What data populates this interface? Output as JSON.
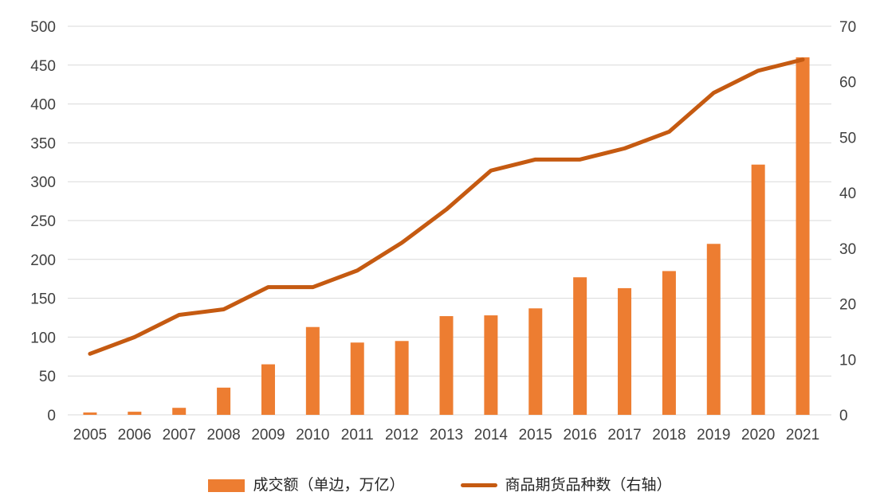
{
  "chart_data": {
    "type": "bar+line",
    "title": "",
    "categories": [
      "2005",
      "2006",
      "2007",
      "2008",
      "2009",
      "2010",
      "2011",
      "2012",
      "2013",
      "2014",
      "2015",
      "2016",
      "2017",
      "2018",
      "2019",
      "2020",
      "2021"
    ],
    "series": [
      {
        "name": "成交额（单边，万亿）",
        "type": "bar",
        "axis": "left",
        "color": "#ED7D31",
        "values": [
          3,
          4,
          9,
          35,
          65,
          113,
          93,
          95,
          127,
          128,
          137,
          177,
          163,
          185,
          220,
          322,
          460
        ]
      },
      {
        "name": "商品期货品种数（右轴）",
        "type": "line",
        "axis": "right",
        "color": "#C55A11",
        "values": [
          11,
          14,
          18,
          19,
          23,
          23,
          26,
          31,
          37,
          44,
          46,
          46,
          48,
          51,
          58,
          62,
          64
        ]
      }
    ],
    "left_axis": {
      "min": 0,
      "max": 500,
      "step": 50
    },
    "right_axis": {
      "min": 0,
      "max": 70,
      "step": 10
    },
    "grid": true,
    "legend_position": "bottom"
  },
  "colors": {
    "bar": "#ED7D31",
    "line": "#C55A11",
    "gridline": "#D9D9D9",
    "axis_text": "#404040"
  }
}
